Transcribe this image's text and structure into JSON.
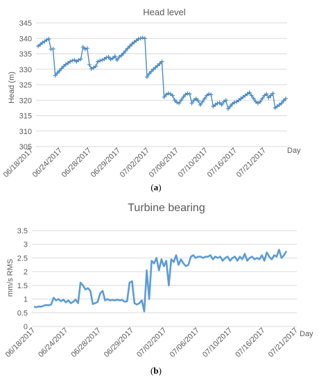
{
  "chart_data": [
    {
      "type": "line",
      "title": "Head level",
      "ylabel": "Head (m)",
      "xlabel": "Day",
      "ylim": [
        305,
        345
      ],
      "yticks": [
        305,
        310,
        315,
        320,
        325,
        330,
        335,
        340,
        345
      ],
      "tick_labels": [
        "06/18/2017",
        "06/24/2017",
        "06/28/2017",
        "06/29/2017",
        "07/02/2017",
        "07/06/2017",
        "07/10/2017",
        "07/16/2017",
        "07/21/2017"
      ],
      "grid": true,
      "marker": "plus",
      "color": "#4A8AC4",
      "caption": "(a)",
      "series": [
        {
          "values": [
            337.5,
            338.0,
            338.6,
            339.0,
            339.5,
            339.8,
            336.5,
            336.6,
            328.0,
            328.8,
            329.5,
            330.3,
            331.0,
            331.6,
            332.0,
            332.5,
            332.8,
            333.0,
            332.5,
            333.0,
            333.3,
            337.2,
            336.5,
            336.8,
            331.5,
            330.2,
            330.5,
            331.0,
            332.5,
            332.8,
            333.0,
            333.3,
            333.8,
            334.0,
            333.2,
            333.6,
            334.2,
            333.0,
            334.0,
            334.5,
            335.2,
            336.0,
            336.8,
            337.5,
            338.2,
            338.8,
            339.3,
            339.8,
            340.0,
            340.2,
            340.0,
            327.5,
            328.5,
            329.3,
            330.0,
            330.6,
            331.2,
            331.8,
            332.5,
            321.0,
            321.8,
            322.2,
            322.0,
            321.5,
            320.0,
            319.3,
            319.0,
            320.0,
            321.0,
            321.8,
            322.2,
            322.0,
            319.0,
            320.0,
            320.5,
            319.8,
            318.5,
            319.5,
            320.5,
            321.5,
            322.0,
            321.8,
            318.0,
            318.5,
            319.0,
            319.2,
            318.5,
            319.5,
            320.0,
            317.2,
            318.0,
            318.8,
            319.3,
            319.5,
            320.0,
            320.5,
            321.0,
            321.5,
            322.0,
            322.5,
            321.5,
            320.5,
            319.5,
            319.0,
            319.5,
            320.5,
            321.5,
            322.0,
            320.8,
            321.5,
            322.2,
            317.5,
            318.0,
            318.5,
            319.0,
            319.8,
            320.5
          ]
        }
      ]
    },
    {
      "type": "line",
      "title": "Turbine bearing",
      "ylabel": "mm/s RMS",
      "xlabel": "Day",
      "ylim": [
        0,
        3.5
      ],
      "yticks": [
        0,
        0.5,
        1,
        1.5,
        2,
        2.5,
        3,
        3.5
      ],
      "ytick_labels": [
        "0",
        "0.5",
        "1",
        "1.5",
        "2",
        "2.5",
        "3",
        "3.5"
      ],
      "tick_labels": [
        "06/18/2017",
        "06/24/2017",
        "06/28/2017",
        "06/29/2017",
        "07/02/2017",
        "07/06/2017",
        "07/10/2017",
        "07/16/2017",
        "07/21/2017"
      ],
      "grid": true,
      "color": "#5B9BD5",
      "caption": "(b)",
      "series": [
        {
          "values": [
            0.72,
            0.7,
            0.73,
            0.72,
            0.76,
            0.78,
            0.77,
            0.8,
            1.05,
            0.95,
            1.0,
            0.92,
            0.98,
            0.88,
            0.95,
            0.85,
            0.9,
            0.98,
            0.85,
            1.6,
            1.5,
            1.35,
            1.4,
            1.3,
            0.82,
            0.85,
            0.9,
            1.2,
            1.3,
            0.95,
            1.0,
            0.95,
            0.97,
            0.95,
            0.98,
            0.95,
            0.97,
            0.9,
            0.92,
            1.6,
            1.65,
            0.85,
            0.8,
            0.85,
            0.95,
            0.55,
            2.05,
            1.0,
            2.4,
            2.3,
            2.5,
            2.05,
            2.45,
            2.2,
            2.4,
            1.5,
            2.45,
            2.35,
            2.6,
            2.25,
            2.45,
            2.3,
            2.2,
            2.25,
            2.55,
            2.6,
            2.5,
            2.55,
            2.55,
            2.5,
            2.55,
            2.55,
            2.6,
            2.45,
            2.55,
            2.5,
            2.55,
            2.4,
            2.5,
            2.55,
            2.4,
            2.5,
            2.55,
            2.4,
            2.55,
            2.45,
            2.65,
            2.4,
            2.5,
            2.55,
            2.45,
            2.5,
            2.45,
            2.6,
            2.4,
            2.7,
            2.55,
            2.45,
            2.6,
            2.55,
            2.8,
            2.5,
            2.6,
            2.75
          ]
        }
      ]
    }
  ]
}
